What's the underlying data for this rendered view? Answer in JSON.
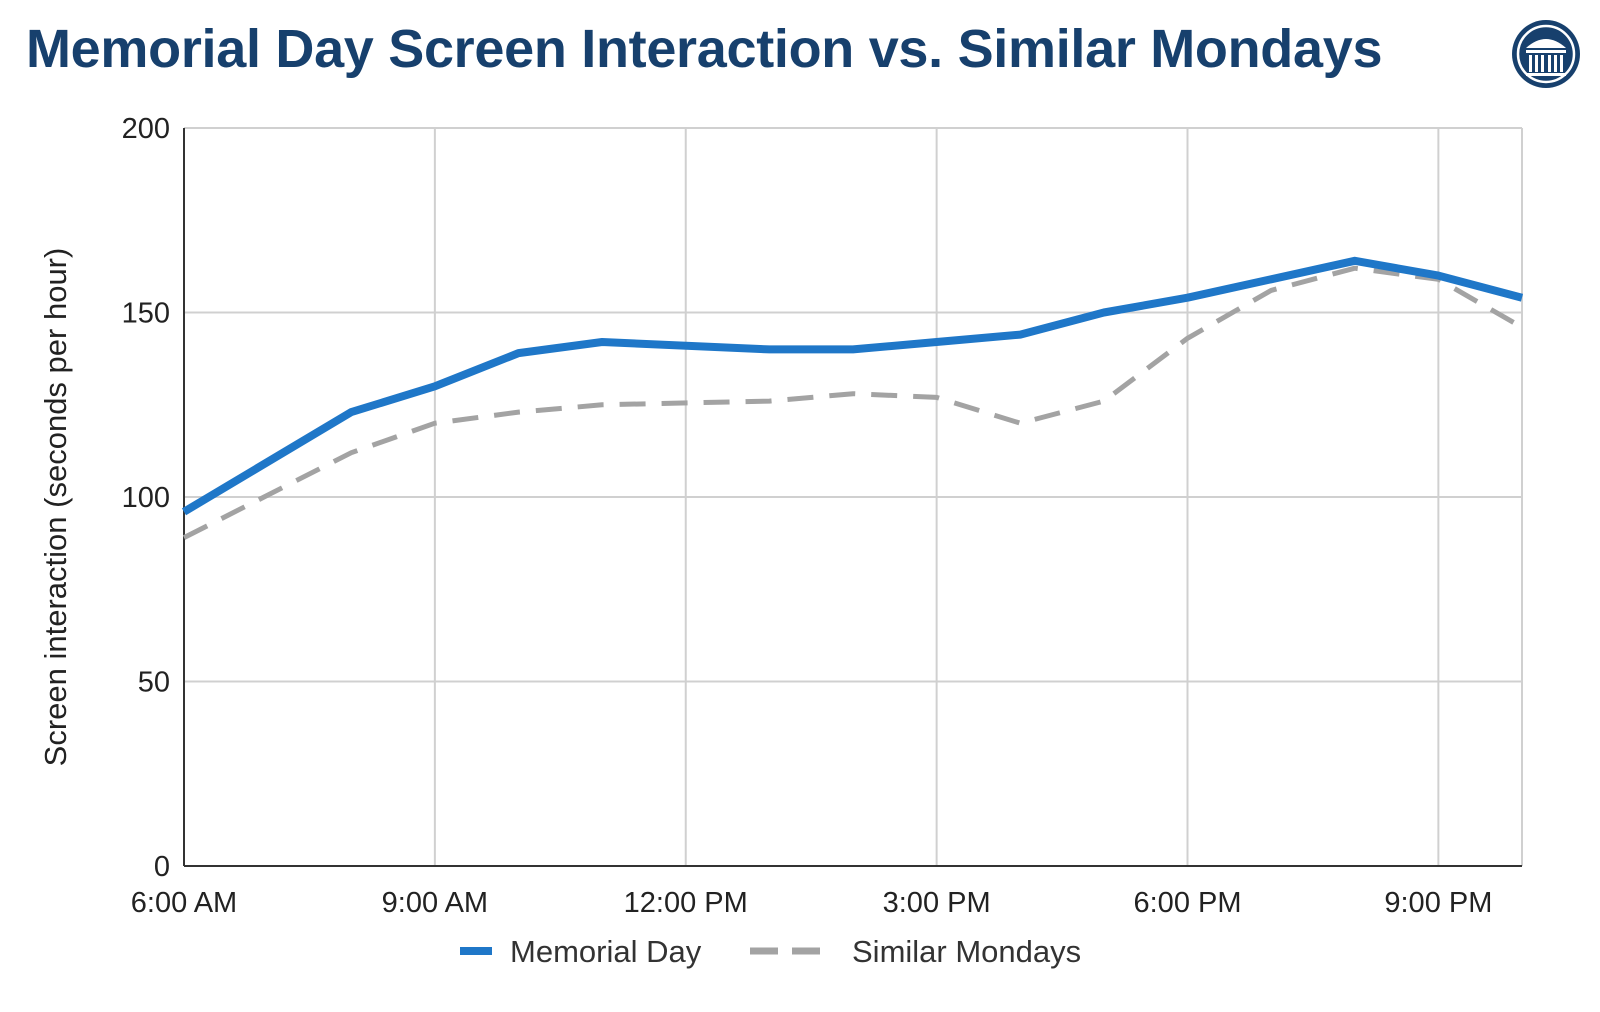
{
  "title": "Memorial Day Screen Interaction vs. Similar Mondays",
  "logo_icon": "institution-columns-icon",
  "colors": {
    "title": "#17406d",
    "memorial_day": "#1f77c8",
    "similar_mondays": "#a3a3a3",
    "grid": "#d0d0d0"
  },
  "chart_data": {
    "type": "line",
    "title": "Memorial Day Screen Interaction vs. Similar Mondays",
    "xlabel": "",
    "ylabel": "Screen interaction (seconds per hour)",
    "ylim": [
      0,
      200
    ],
    "yticks": [
      0,
      50,
      100,
      150,
      200
    ],
    "xlim": [
      6,
      22
    ],
    "xticks": [
      6,
      9,
      12,
      15,
      18,
      21
    ],
    "xtick_labels": [
      "6:00 AM",
      "9:00 AM",
      "12:00 PM",
      "3:00 PM",
      "6:00 PM",
      "9:00 PM"
    ],
    "x": [
      6,
      8,
      9,
      10,
      11,
      13,
      14,
      15,
      16,
      17,
      18,
      19,
      20,
      21,
      22
    ],
    "series": [
      {
        "name": "Memorial Day",
        "style": "solid",
        "values": [
          96,
          123,
          130,
          139,
          142,
          140,
          140,
          142,
          144,
          150,
          154,
          159,
          164,
          160,
          154
        ]
      },
      {
        "name": "Similar Mondays",
        "style": "dashed",
        "values": [
          89,
          112,
          120,
          123,
          125,
          126,
          128,
          127,
          120,
          126,
          143,
          156,
          162,
          159,
          146
        ]
      }
    ],
    "grid": true,
    "legend_position": "bottom"
  }
}
